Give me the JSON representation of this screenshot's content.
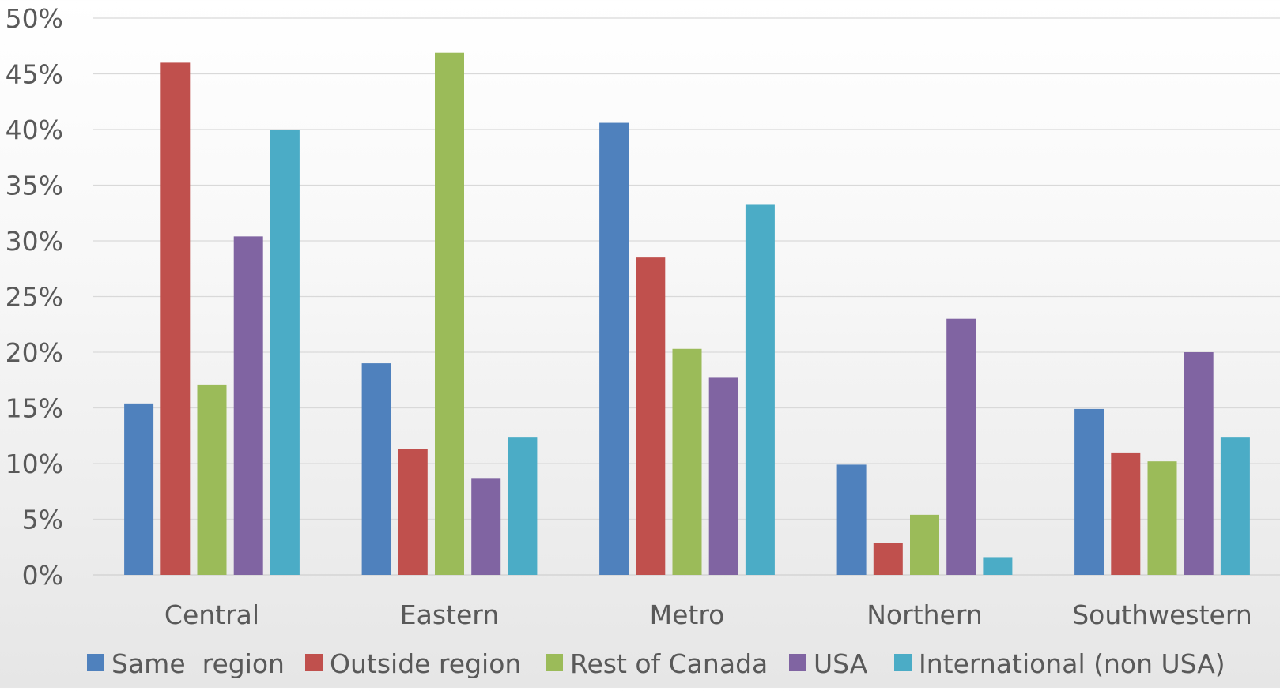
{
  "chart_data": {
    "type": "bar",
    "title": "",
    "xlabel": "",
    "ylabel": "",
    "categories": [
      "Central",
      "Eastern",
      "Metro",
      "Northern",
      "Southwestern"
    ],
    "series": [
      {
        "name": "Same  region",
        "color": "#4F81BD",
        "values": [
          15.4,
          19.0,
          40.6,
          9.9,
          14.9
        ]
      },
      {
        "name": "Outside region",
        "color": "#C0504D",
        "values": [
          46.0,
          11.3,
          28.5,
          2.9,
          11.0
        ]
      },
      {
        "name": "Rest of Canada",
        "color": "#9BBB59",
        "values": [
          17.1,
          46.9,
          20.3,
          5.4,
          10.2
        ]
      },
      {
        "name": "USA",
        "color": "#8064A2",
        "values": [
          30.4,
          8.7,
          17.7,
          23.0,
          20.0
        ]
      },
      {
        "name": "International (non USA)",
        "color": "#4BACC6",
        "values": [
          40.0,
          12.4,
          33.3,
          1.6,
          12.4
        ]
      }
    ],
    "ylim": [
      0,
      50
    ],
    "y_ticks": [
      "0%",
      "5%",
      "10%",
      "15%",
      "20%",
      "25%",
      "30%",
      "35%",
      "40%",
      "45%",
      "50%"
    ],
    "grid": true,
    "legend_position": "bottom"
  }
}
